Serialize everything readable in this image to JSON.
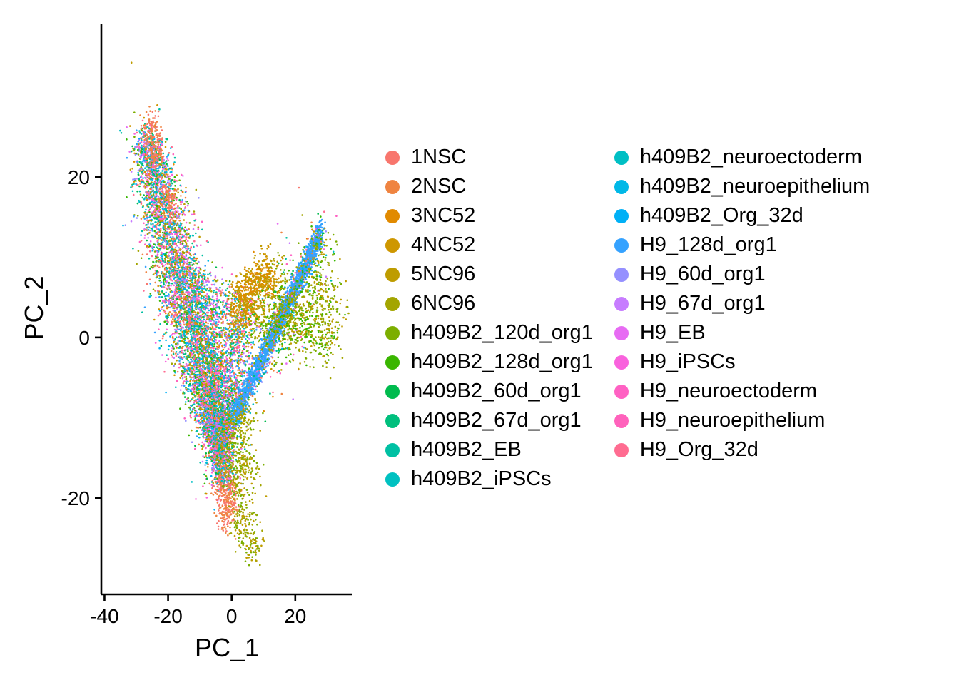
{
  "chart_data": {
    "type": "scatter",
    "title": "",
    "xlabel": "PC_1",
    "ylabel": "PC_2",
    "xlim": [
      -41,
      38
    ],
    "ylim": [
      -32,
      39
    ],
    "xticks": [
      -40,
      -20,
      0,
      20
    ],
    "yticks": [
      20,
      0,
      -20
    ],
    "xtick_labels": [
      "-40",
      "-20",
      "0",
      "20"
    ],
    "ytick_labels": [
      "20",
      "0",
      "-20"
    ],
    "grid": false,
    "legend_position": "right",
    "series": [
      {
        "name": "1NSC",
        "color": "#F8766D"
      },
      {
        "name": "2NSC",
        "color": "#EF8441"
      },
      {
        "name": "3NC52",
        "color": "#E18A00"
      },
      {
        "name": "4NC52",
        "color": "#CE9700"
      },
      {
        "name": "5NC96",
        "color": "#BE9C00"
      },
      {
        "name": "6NC96",
        "color": "#A3A500"
      },
      {
        "name": "h409B2_120d_org1",
        "color": "#7CAE00"
      },
      {
        "name": "h409B2_128d_org1",
        "color": "#39B600"
      },
      {
        "name": "h409B2_60d_org1",
        "color": "#00BB4E"
      },
      {
        "name": "h409B2_67d_org1",
        "color": "#00BF7D"
      },
      {
        "name": "h409B2_EB",
        "color": "#00C0A3"
      },
      {
        "name": "h409B2_iPSCs",
        "color": "#00C1C1"
      },
      {
        "name": "h409B2_neuroectoderm",
        "color": "#00BFC4"
      },
      {
        "name": "h409B2_neuroepithelium",
        "color": "#00B8E7"
      },
      {
        "name": "h409B2_Org_32d",
        "color": "#00B0F6"
      },
      {
        "name": "H9_128d_org1",
        "color": "#35A2FF"
      },
      {
        "name": "H9_60d_org1",
        "color": "#9590FF"
      },
      {
        "name": "H9_67d_org1",
        "color": "#C77CFF"
      },
      {
        "name": "H9_EB",
        "color": "#E76BF3"
      },
      {
        "name": "H9_iPSCs",
        "color": "#F962DD"
      },
      {
        "name": "H9_neuroectoderm",
        "color": "#FF61C3"
      },
      {
        "name": "H9_neuroepithelium",
        "color": "#FF62BC"
      },
      {
        "name": "H9_Org_32d",
        "color": "#FF6C91"
      }
    ],
    "regions": [
      {
        "series": [
          5,
          6,
          7,
          4
        ],
        "points": [
          [
            9,
            3
          ],
          [
            16,
            3
          ],
          [
            22,
            4
          ],
          [
            27,
            5
          ],
          [
            25,
            1
          ],
          [
            29,
            0
          ],
          [
            31,
            3
          ],
          [
            28,
            10
          ],
          [
            20,
            1
          ],
          [
            14,
            6
          ],
          [
            12,
            1
          ],
          [
            18,
            2
          ]
        ],
        "spread": 4.5
      },
      {
        "series": [
          2,
          3,
          4
        ],
        "points": [
          [
            3,
            5
          ],
          [
            6,
            7
          ],
          [
            8,
            6
          ],
          [
            10,
            8
          ],
          [
            5,
            4
          ],
          [
            2,
            3
          ],
          [
            12,
            7
          ]
        ],
        "spread": 3
      },
      {
        "series": [
          0,
          1
        ],
        "points": [
          [
            -25,
            26
          ],
          [
            -24,
            23
          ],
          [
            -20,
            17
          ],
          [
            -2,
            -22
          ],
          [
            0,
            -20
          ],
          [
            -3,
            -19
          ]
        ],
        "spread": 2.5
      },
      {
        "series": [
          4,
          5,
          6
        ],
        "points": [
          [
            2,
            -18
          ],
          [
            5,
            -16
          ],
          [
            3,
            -23
          ],
          [
            6,
            -25
          ],
          [
            1,
            -13
          ],
          [
            4,
            -10
          ]
        ],
        "spread": 3.5
      }
    ]
  }
}
